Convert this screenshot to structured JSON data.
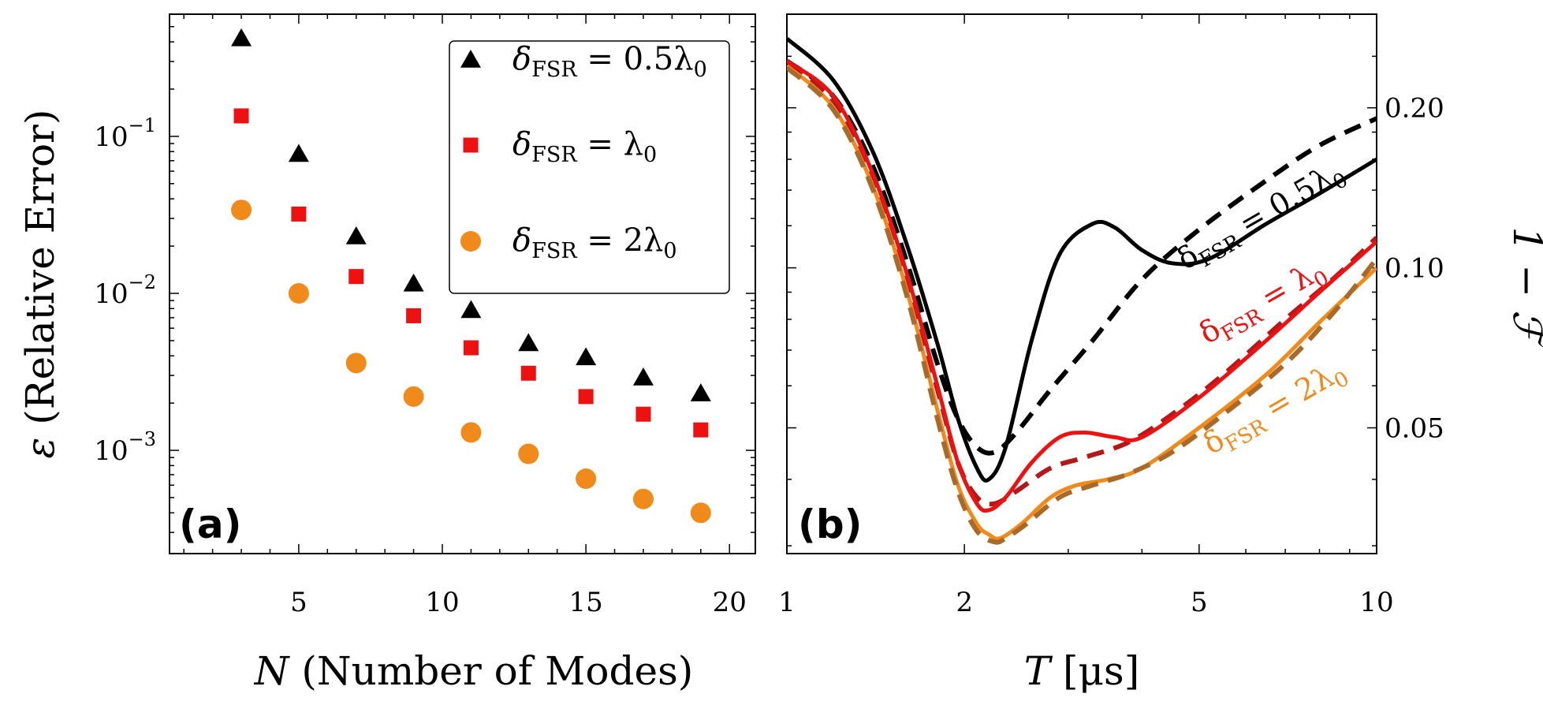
{
  "chart_data": [
    {
      "panel": "(a)",
      "type": "scatter",
      "xlabel_var": "N",
      "xlabel_text": "(Number of Modes)",
      "ylabel_var": "ε",
      "ylabel_text": "(Relative Error)",
      "xscale": "linear",
      "yscale": "log",
      "xlim": [
        0.5,
        20.9
      ],
      "ylim": [
        0.00022,
        0.6
      ],
      "xticks": [
        5,
        10,
        15,
        20
      ],
      "xtick_labels": [
        "5",
        "10",
        "15",
        "20"
      ],
      "yticks": [
        0.1,
        0.01,
        0.001
      ],
      "ytick_labels": [
        {
          "base": "10",
          "exp": "−1"
        },
        {
          "base": "10",
          "exp": "−2"
        },
        {
          "base": "10",
          "exp": "−3"
        }
      ],
      "legend_position": "top-right",
      "series": [
        {
          "name": "δ_FSR = 0.5λ0",
          "legend_lhs": "δ",
          "legend_sub": "FSR",
          "legend_rhs": " = 0.5λ",
          "legend_rhs_sub": "0",
          "marker": "triangle",
          "color": "#000000",
          "x": [
            3,
            5,
            7,
            9,
            11,
            13,
            15,
            17,
            19
          ],
          "y": [
            0.42,
            0.077,
            0.023,
            0.0115,
            0.0078,
            0.0048,
            0.0039,
            0.0029,
            0.0023
          ]
        },
        {
          "name": "δ_FSR = λ0",
          "legend_lhs": "δ",
          "legend_sub": "FSR",
          "legend_rhs": " = λ",
          "legend_rhs_sub": "0",
          "marker": "square",
          "color": "#ee1111",
          "x": [
            3,
            5,
            7,
            9,
            11,
            13,
            15,
            17,
            19
          ],
          "y": [
            0.135,
            0.032,
            0.0128,
            0.0072,
            0.0045,
            0.0031,
            0.0022,
            0.0017,
            0.00135
          ]
        },
        {
          "name": "δ_FSR = 2λ0",
          "legend_lhs": "δ",
          "legend_sub": "FSR",
          "legend_rhs": " = 2λ",
          "legend_rhs_sub": "0",
          "marker": "circle",
          "color": "#f08a1a",
          "x": [
            3,
            5,
            7,
            9,
            11,
            13,
            15,
            17,
            19
          ],
          "y": [
            0.034,
            0.01,
            0.0036,
            0.0022,
            0.0013,
            0.00095,
            0.00066,
            0.00049,
            0.0004
          ]
        }
      ]
    },
    {
      "panel": "(b)",
      "type": "line",
      "xlabel_var": "T",
      "xlabel_text": "[μs]",
      "ylabel_text": "1 − ℱ",
      "xscale": "log",
      "yscale": "log",
      "xlim": [
        1,
        10
      ],
      "ylim": [
        0.029,
        0.3
      ],
      "xticks": [
        1,
        2,
        5,
        10
      ],
      "xtick_labels": [
        "1",
        "2",
        "5",
        "10"
      ],
      "yticks": [
        0.2,
        0.1,
        0.05
      ],
      "ytick_labels": [
        "0.20",
        "0.10",
        "0.05"
      ],
      "y_axis_side": "right",
      "series": [
        {
          "name": "δ_FSR = 0.5λ0 (solid)",
          "style": "solid",
          "color": "#000000",
          "x": [
            1.0,
            1.2,
            1.4,
            1.6,
            1.8,
            1.95,
            2.1,
            2.2,
            2.35,
            2.6,
            2.9,
            3.3,
            3.6,
            4.0,
            4.5,
            5.2,
            6.5,
            8.0,
            10.0
          ],
          "y": [
            0.27,
            0.225,
            0.165,
            0.11,
            0.072,
            0.052,
            0.042,
            0.04,
            0.046,
            0.073,
            0.106,
            0.121,
            0.119,
            0.108,
            0.102,
            0.104,
            0.121,
            0.138,
            0.16
          ]
        },
        {
          "name": "δ_FSR = 0.5λ0 (dashed)",
          "style": "dashed",
          "color": "#000000",
          "x": [
            1.0,
            1.2,
            1.4,
            1.6,
            1.8,
            1.95,
            2.1,
            2.25,
            2.45,
            2.8,
            3.3,
            4.0,
            5.0,
            6.5,
            8.0,
            10.0
          ],
          "y": [
            0.245,
            0.21,
            0.155,
            0.102,
            0.066,
            0.052,
            0.046,
            0.045,
            0.049,
            0.059,
            0.073,
            0.095,
            0.118,
            0.146,
            0.17,
            0.191
          ]
        },
        {
          "name": "δ_FSR = λ0 (solid)",
          "style": "solid",
          "color": "#ee1111",
          "x": [
            1.0,
            1.2,
            1.4,
            1.6,
            1.8,
            1.95,
            2.1,
            2.2,
            2.35,
            2.6,
            2.9,
            3.2,
            3.6,
            4.0,
            5.0,
            6.5,
            8.0,
            10.0
          ],
          "y": [
            0.245,
            0.21,
            0.15,
            0.097,
            0.06,
            0.043,
            0.036,
            0.035,
            0.037,
            0.043,
            0.048,
            0.049,
            0.048,
            0.048,
            0.057,
            0.073,
            0.09,
            0.112
          ]
        },
        {
          "name": "δ_FSR = λ0 (dashed)",
          "style": "dashed",
          "color": "#b51818",
          "x": [
            1.0,
            1.2,
            1.4,
            1.6,
            1.8,
            1.95,
            2.1,
            2.25,
            2.45,
            2.8,
            3.2,
            3.8,
            4.5,
            5.5,
            7.0,
            8.5,
            10.0
          ],
          "y": [
            0.24,
            0.205,
            0.147,
            0.095,
            0.059,
            0.043,
            0.037,
            0.036,
            0.038,
            0.042,
            0.044,
            0.047,
            0.053,
            0.063,
            0.08,
            0.096,
            0.114
          ]
        },
        {
          "name": "δ_FSR = 2λ0 (solid)",
          "style": "solid",
          "color": "#f08a1a",
          "x": [
            1.0,
            1.2,
            1.4,
            1.6,
            1.8,
            1.95,
            2.1,
            2.2,
            2.3,
            2.5,
            2.8,
            3.1,
            3.5,
            4.0,
            5.0,
            6.5,
            8.0,
            10.0
          ],
          "y": [
            0.24,
            0.2,
            0.142,
            0.09,
            0.054,
            0.039,
            0.033,
            0.0315,
            0.031,
            0.033,
            0.037,
            0.039,
            0.04,
            0.042,
            0.05,
            0.063,
            0.079,
            0.1
          ]
        },
        {
          "name": "δ_FSR = 2λ0 (dashed)",
          "style": "dashed",
          "color": "#a86a2a",
          "x": [
            1.0,
            1.2,
            1.4,
            1.6,
            1.8,
            1.95,
            2.1,
            2.25,
            2.35,
            2.55,
            2.9,
            3.3,
            3.8,
            4.5,
            5.5,
            7.0,
            8.5,
            10.0
          ],
          "y": [
            0.238,
            0.198,
            0.14,
            0.088,
            0.052,
            0.038,
            0.032,
            0.0305,
            0.031,
            0.033,
            0.037,
            0.039,
            0.041,
            0.045,
            0.053,
            0.066,
            0.083,
            0.104
          ]
        }
      ],
      "curve_labels": [
        {
          "lhs": "δ",
          "sub": "FSR",
          "rhs": " = 0.5λ",
          "rhs_sub": "0",
          "color": "#000000"
        },
        {
          "lhs": "δ",
          "sub": "FSR",
          "rhs": " = λ",
          "rhs_sub": "0",
          "color": "#ee1111"
        },
        {
          "lhs": "δ",
          "sub": "FSR",
          "rhs": " = 2λ",
          "rhs_sub": "0",
          "color": "#f08a1a"
        }
      ]
    }
  ]
}
